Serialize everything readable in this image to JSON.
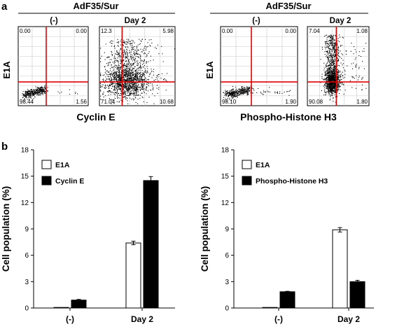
{
  "panel_a": {
    "label": "a",
    "groups": [
      {
        "header": "AdF35/Sur",
        "y_label": "E1A",
        "x_label": "Cyclin E",
        "plots": [
          {
            "column_label": "(-)",
            "quadrants": {
              "ul": "0.00",
              "ur": "0.00",
              "ll": "98.44",
              "lr": "1.56"
            }
          },
          {
            "column_label": "Day 2",
            "quadrants": {
              "ul": "12.3",
              "ur": "5.98",
              "ll": "71.04",
              "lr": "10.68"
            }
          }
        ]
      },
      {
        "header": "AdF35/Sur",
        "y_label": "E1A",
        "x_label": "Phospho-Histone H3",
        "plots": [
          {
            "column_label": "(-)",
            "quadrants": {
              "ul": "0.00",
              "ur": "0.00",
              "ll": "98.10",
              "lr": "1.90"
            }
          },
          {
            "column_label": "Day 2",
            "quadrants": {
              "ul": "7.04",
              "ur": "1.08",
              "ll": "90.08",
              "lr": "1.80"
            }
          }
        ]
      }
    ]
  },
  "panel_b": {
    "label": "b"
  },
  "chart_data": [
    {
      "type": "bar",
      "categories": [
        "(-)",
        "Day 2"
      ],
      "series": [
        {
          "name": "E1A",
          "values": [
            0.0,
            7.4
          ],
          "errors": [
            0.0,
            0.2
          ],
          "color": "#ffffff"
        },
        {
          "name": "Cyclin E",
          "values": [
            0.9,
            14.5
          ],
          "errors": [
            0.08,
            0.45
          ],
          "color": "#000000"
        }
      ],
      "ylabel": "Cell population (%)",
      "ylim": [
        0,
        18
      ],
      "yticks": [
        "0",
        "3",
        "6",
        "9",
        "12",
        "15",
        "18"
      ],
      "legend": "top-left"
    },
    {
      "type": "bar",
      "categories": [
        "(-)",
        "Day 2"
      ],
      "series": [
        {
          "name": "E1A",
          "values": [
            0.05,
            8.9
          ],
          "errors": [
            0.0,
            0.25
          ],
          "color": "#ffffff"
        },
        {
          "name": "Phospho-Histone H3",
          "values": [
            1.85,
            3.0
          ],
          "errors": [
            0.05,
            0.15
          ],
          "color": "#000000"
        }
      ],
      "ylabel": "Cell population (%)",
      "ylim": [
        0,
        18
      ],
      "yticks": [
        "0",
        "3",
        "6",
        "9",
        "12",
        "15",
        "18"
      ],
      "legend": "top-left"
    }
  ]
}
